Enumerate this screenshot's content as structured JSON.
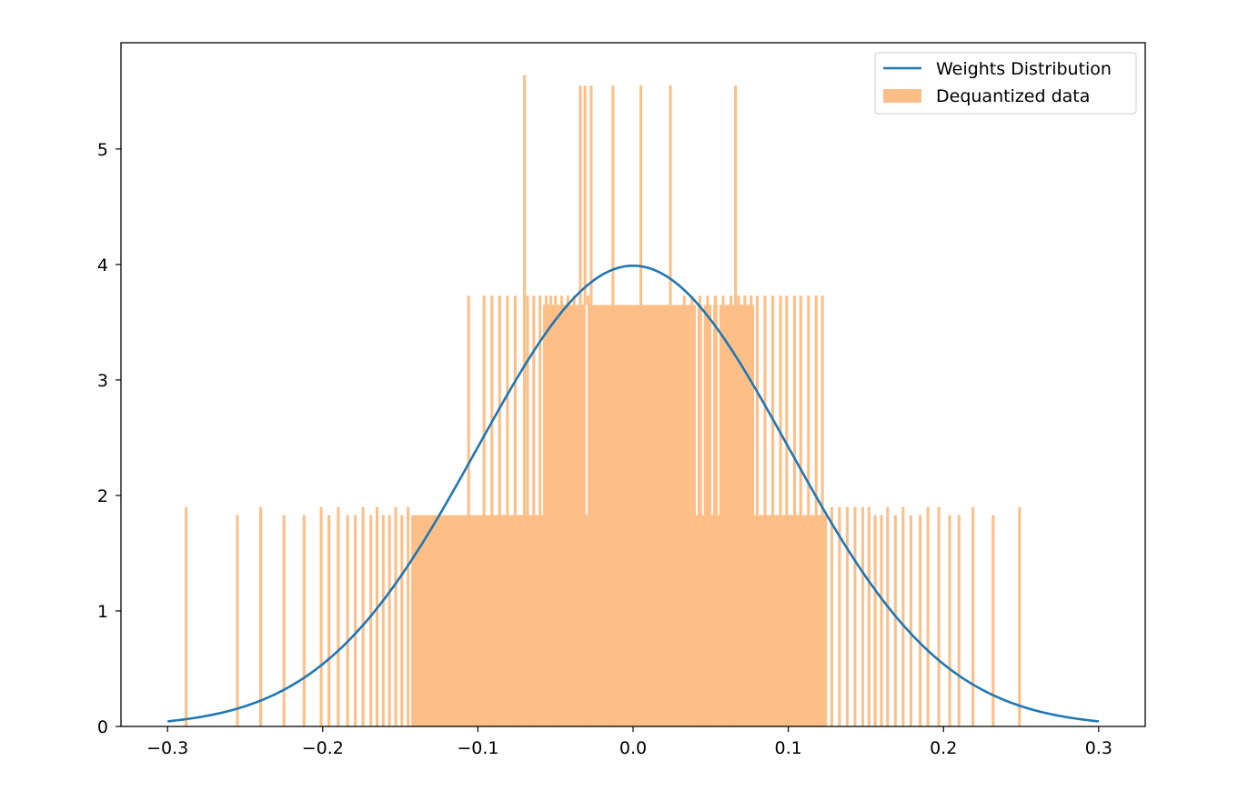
{
  "chart_data": {
    "type": "bar",
    "title": "",
    "xlabel": "",
    "ylabel": "",
    "xlim": [
      -0.33,
      0.33
    ],
    "ylim": [
      0,
      5.92
    ],
    "xticks": [
      -0.3,
      -0.2,
      -0.1,
      0.0,
      0.1,
      0.2,
      0.3
    ],
    "xtick_labels": [
      "−0.3",
      "−0.2",
      "−0.1",
      "0.0",
      "0.1",
      "0.2",
      "0.3"
    ],
    "yticks": [
      0,
      1,
      2,
      3,
      4,
      5
    ],
    "ytick_labels": [
      "0",
      "1",
      "2",
      "3",
      "4",
      "5"
    ],
    "grid": false,
    "legend_position": "top-right",
    "colors": {
      "histogram": "#fdbf87",
      "curve": "#1f77b4"
    },
    "series": [
      {
        "name": "Weights Distribution",
        "type": "line",
        "distribution": "normal",
        "mean": 0.0,
        "std": 0.1,
        "x_range": [
          -0.3,
          0.3
        ],
        "peak": 3.99
      },
      {
        "name": "Dequantized data",
        "type": "histogram",
        "bar_width": 0.0018,
        "bins": [
          [
            -0.288,
            1.9
          ],
          [
            -0.255,
            1.83
          ],
          [
            -0.24,
            1.9
          ],
          [
            -0.225,
            1.83
          ],
          [
            -0.212,
            1.83
          ],
          [
            -0.201,
            1.9
          ],
          [
            -0.196,
            1.83
          ],
          [
            -0.19,
            1.9
          ],
          [
            -0.184,
            1.83
          ],
          [
            -0.179,
            1.83
          ],
          [
            -0.174,
            1.9
          ],
          [
            -0.169,
            1.83
          ],
          [
            -0.165,
            1.9
          ],
          [
            -0.161,
            1.83
          ],
          [
            -0.157,
            1.83
          ],
          [
            -0.153,
            1.9
          ],
          [
            -0.149,
            1.83
          ],
          [
            -0.145,
            1.9
          ],
          [
            -0.106,
            3.73
          ],
          [
            -0.096,
            3.73
          ],
          [
            -0.091,
            3.73
          ],
          [
            -0.086,
            3.73
          ],
          [
            -0.081,
            3.73
          ],
          [
            -0.076,
            3.73
          ],
          [
            -0.07,
            5.64
          ],
          [
            -0.068,
            3.73
          ],
          [
            -0.064,
            3.73
          ],
          [
            -0.06,
            3.73
          ],
          [
            -0.056,
            3.73
          ],
          [
            -0.053,
            3.73
          ],
          [
            -0.05,
            3.73
          ],
          [
            -0.046,
            3.73
          ],
          [
            -0.042,
            3.73
          ],
          [
            -0.038,
            3.73
          ],
          [
            -0.034,
            5.55
          ],
          [
            -0.031,
            5.55
          ],
          [
            -0.029,
            3.73
          ],
          [
            -0.027,
            5.55
          ],
          [
            -0.013,
            5.55
          ],
          [
            0.005,
            5.55
          ],
          [
            0.024,
            5.55
          ],
          [
            0.033,
            3.73
          ],
          [
            0.038,
            3.73
          ],
          [
            0.043,
            3.73
          ],
          [
            0.048,
            3.73
          ],
          [
            0.053,
            3.73
          ],
          [
            0.058,
            3.73
          ],
          [
            0.063,
            3.73
          ],
          [
            0.066,
            5.55
          ],
          [
            0.068,
            3.73
          ],
          [
            0.072,
            3.73
          ],
          [
            0.076,
            3.73
          ],
          [
            0.08,
            3.73
          ],
          [
            0.085,
            3.73
          ],
          [
            0.09,
            3.73
          ],
          [
            0.095,
            3.73
          ],
          [
            0.099,
            3.73
          ],
          [
            0.104,
            3.73
          ],
          [
            0.108,
            3.73
          ],
          [
            0.113,
            3.73
          ],
          [
            0.118,
            3.73
          ],
          [
            0.122,
            3.73
          ],
          [
            0.128,
            1.9
          ],
          [
            0.133,
            1.9
          ],
          [
            0.138,
            1.9
          ],
          [
            0.143,
            1.9
          ],
          [
            0.148,
            1.9
          ],
          [
            0.152,
            1.9
          ],
          [
            0.156,
            1.83
          ],
          [
            0.16,
            1.83
          ],
          [
            0.164,
            1.9
          ],
          [
            0.169,
            1.83
          ],
          [
            0.174,
            1.9
          ],
          [
            0.179,
            1.83
          ],
          [
            0.185,
            1.83
          ],
          [
            0.19,
            1.9
          ],
          [
            0.197,
            1.9
          ],
          [
            0.204,
            1.83
          ],
          [
            0.21,
            1.83
          ],
          [
            0.219,
            1.9
          ],
          [
            0.232,
            1.83
          ],
          [
            0.249,
            1.9
          ]
        ],
        "filled_block": {
          "x_range": [
            -0.143,
            0.125
          ],
          "height": 1.83
        },
        "upper_block": {
          "x_range": [
            -0.058,
            0.078
          ],
          "height": 3.65
        },
        "upper_block_gaps": [
          -0.03,
          0.041,
          0.045,
          0.051,
          0.055
        ]
      }
    ]
  }
}
